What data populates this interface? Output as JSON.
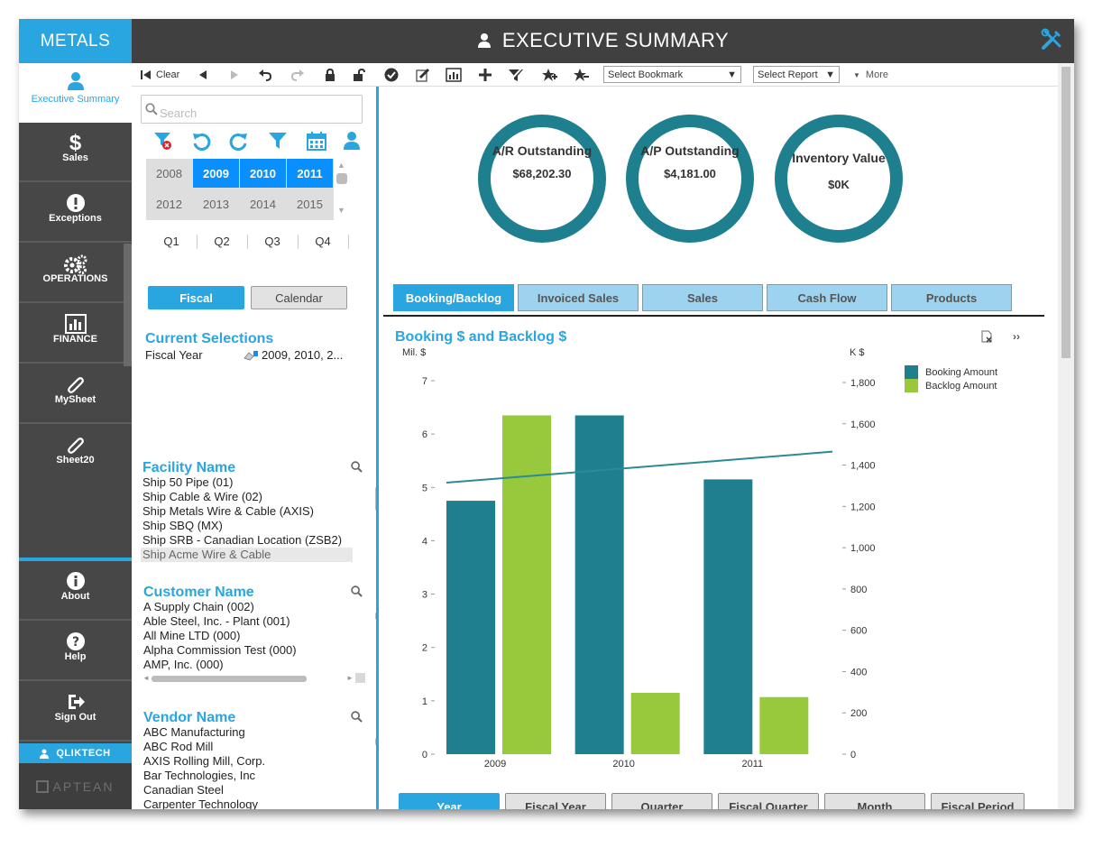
{
  "brand": "METALS",
  "header": {
    "title": "EXECUTIVE SUMMARY"
  },
  "nav": {
    "items": [
      {
        "label": "Executive Summary",
        "icon": "user-icon"
      },
      {
        "label": "Sales",
        "icon": "dollar-icon"
      },
      {
        "label": "Exceptions",
        "icon": "exclamation-icon"
      },
      {
        "label": "OPERATIONS",
        "icon": "gears-icon"
      },
      {
        "label": "FINANCE",
        "icon": "bar-chart-icon"
      },
      {
        "label": "MySheet",
        "icon": "paperclip-icon"
      },
      {
        "label": "Sheet20",
        "icon": "paperclip-icon"
      }
    ],
    "bottom": [
      {
        "label": "About",
        "icon": "info-icon"
      },
      {
        "label": "Help",
        "icon": "question-icon"
      },
      {
        "label": "Sign Out",
        "icon": "sign-out-icon"
      }
    ],
    "user": "QLIKTECH",
    "vendor_logo": "APTEAN"
  },
  "toolbar": {
    "clear_label": "Clear",
    "bookmark_select": "Select Bookmark",
    "report_select": "Select Report",
    "more_label": "More"
  },
  "filters": {
    "search_placeholder": "Search",
    "years": [
      "2008",
      "2009",
      "2010",
      "2011",
      "2012",
      "2013",
      "2014",
      "2015"
    ],
    "selected_years": [
      "2009",
      "2010",
      "2011"
    ],
    "quarters": [
      "Q1",
      "Q2",
      "Q3",
      "Q4"
    ],
    "fiscal_label": "Fiscal",
    "calendar_label": "Calendar",
    "current_selections_title": "Current Selections",
    "selection_field": "Fiscal Year",
    "selection_value": "2009, 2010, 2...",
    "facility_title": "Facility Name",
    "facilities": [
      "Ship 50 Pipe (01)",
      "Ship Cable & Wire (02)",
      "Ship Metals Wire & Cable  (AXIS)",
      "Ship SBQ (MX)",
      "Ship SRB - Canadian Location (ZSB2)",
      "Ship Acme Wire & Cable"
    ],
    "customer_title": "Customer Name",
    "customers": [
      "A Supply Chain (002)",
      "Able Steel, Inc. - Plant (001)",
      "All Mine LTD (000)",
      "Alpha Commission Test (000)",
      "AMP, Inc. (000)"
    ],
    "vendor_title": "Vendor Name",
    "vendors": [
      "ABC Manufacturing",
      "ABC Rod Mill",
      "AXIS Rolling Mill, Corp.",
      "Bar Technologies, Inc",
      "Canadian Steel",
      "Carpenter Technology"
    ]
  },
  "kpis": [
    {
      "title": "A/R Outstanding",
      "value": "$68,202.30"
    },
    {
      "title": "A/P Outstanding",
      "value": "$4,181.00"
    },
    {
      "title": "Inventory Value",
      "value": "$0K"
    }
  ],
  "tabs": [
    "Booking/Backlog",
    "Invoiced Sales",
    "Sales",
    "Cash Flow",
    "Products"
  ],
  "active_tab": "Booking/Backlog",
  "chart_title": "Booking $ and Backlog $",
  "bottom_buttons": [
    "Year",
    "Fiscal Year",
    "Quarter",
    "Fiscal Quarter",
    "Month",
    "Fiscal Period"
  ],
  "active_bottom_button": "Year",
  "colors": {
    "accent": "#29a5e0",
    "booking": "#1e7f8f",
    "backlog": "#98c93c"
  },
  "chart_data": {
    "type": "bar",
    "title": "Booking $ and Backlog $",
    "categories": [
      "2009",
      "2010",
      "2011"
    ],
    "series": [
      {
        "name": "Booking Amount",
        "values": [
          4.75,
          6.35,
          5.15
        ],
        "axis": "left"
      },
      {
        "name": "Backlog Amount",
        "values": [
          6.35,
          1.15,
          1.07
        ],
        "axis": "left"
      }
    ],
    "trendline": {
      "axis": "right",
      "start": 1315,
      "end": 1465
    },
    "ylabel": "Mil. $",
    "y2label": "K $",
    "ylim": [
      0,
      7
    ],
    "y2lim": [
      0,
      1800
    ],
    "yticks": [
      "0",
      "1",
      "2",
      "3",
      "4",
      "5",
      "6",
      "7"
    ],
    "y2ticks": [
      "0",
      "200",
      "400",
      "600",
      "800",
      "1,000",
      "1,200",
      "1,400",
      "1,600",
      "1,800"
    ],
    "legend_position": "top-right"
  }
}
